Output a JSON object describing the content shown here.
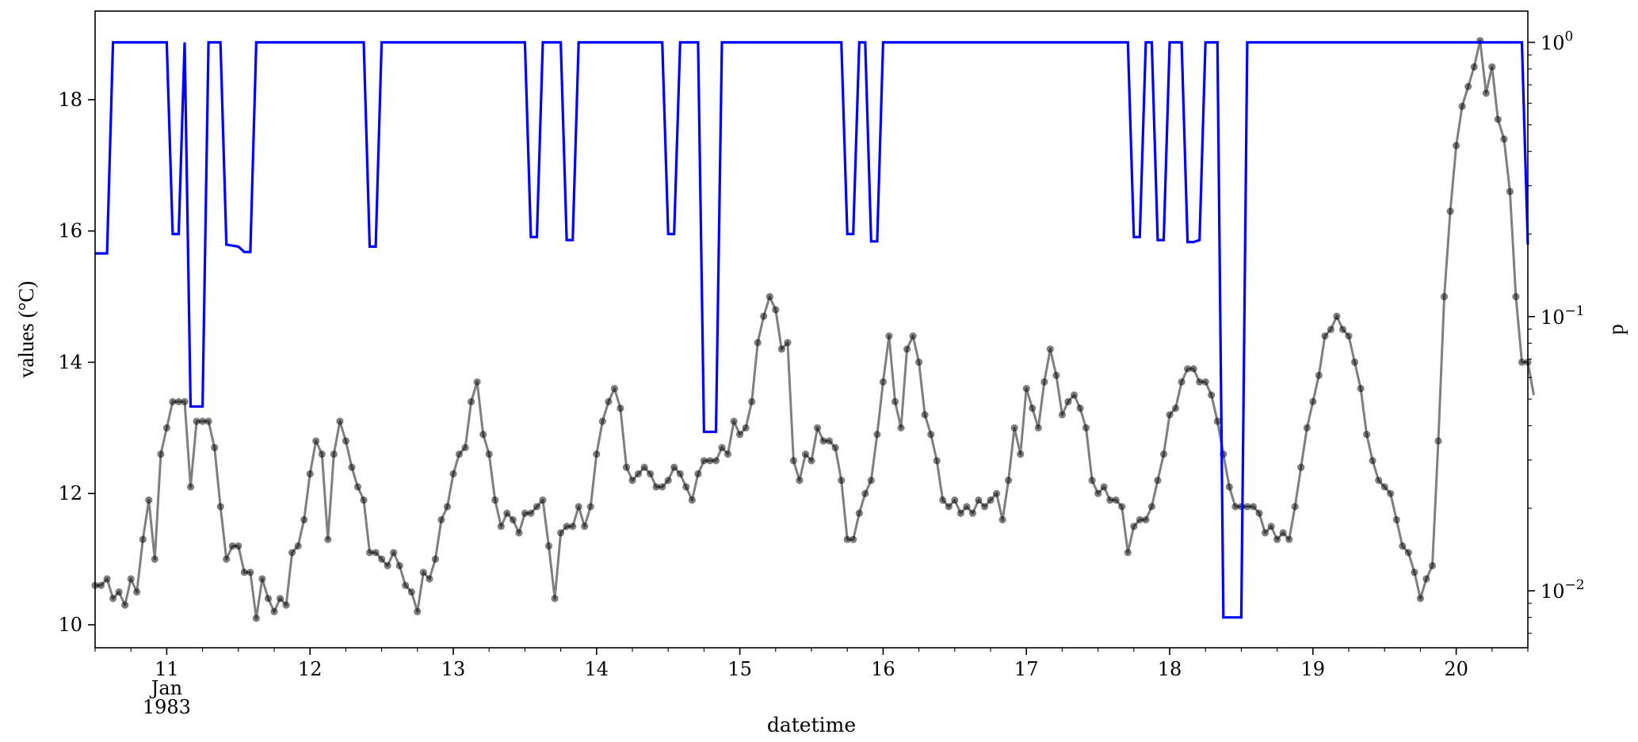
{
  "chart_data": {
    "type": "line",
    "xlabel": "datetime",
    "ylabel_left": "values (°C)",
    "ylabel_right": "p",
    "x_range": [
      "1983-01-10T12:00",
      "1983-01-20T12:00"
    ],
    "x_ticks": [
      {
        "x": "1983-01-11",
        "lines": [
          "11",
          "Jan",
          "1983"
        ]
      },
      {
        "x": "1983-01-12",
        "lines": [
          "12"
        ]
      },
      {
        "x": "1983-01-13",
        "lines": [
          "13"
        ]
      },
      {
        "x": "1983-01-14",
        "lines": [
          "14"
        ]
      },
      {
        "x": "1983-01-15",
        "lines": [
          "15"
        ]
      },
      {
        "x": "1983-01-16",
        "lines": [
          "16"
        ]
      },
      {
        "x": "1983-01-17",
        "lines": [
          "17"
        ]
      },
      {
        "x": "1983-01-18",
        "lines": [
          "18"
        ]
      },
      {
        "x": "1983-01-19",
        "lines": [
          "19"
        ]
      },
      {
        "x": "1983-01-20",
        "lines": [
          "20"
        ]
      }
    ],
    "ylim_left": [
      9.65,
      19.35
    ],
    "yticks_left": [
      "10",
      "12",
      "14",
      "16",
      "18"
    ],
    "ylim_right_log": [
      0.0062,
      1.3
    ],
    "yticks_right": [
      {
        "value": 1,
        "base": "10",
        "exp": "0"
      },
      {
        "value": 0.1,
        "base": "10",
        "exp": "−1"
      },
      {
        "value": 0.01,
        "base": "10",
        "exp": "−2"
      }
    ],
    "grid": false,
    "series": [
      {
        "color": "#000000",
        "opacity": 0.5,
        "marker": "circle",
        "start": "1983-01-10T12:00",
        "step_hours": 1,
        "values": [
          10.6,
          10.6,
          10.7,
          10.4,
          10.5,
          10.3,
          10.7,
          10.5,
          11.3,
          11.9,
          11.0,
          12.6,
          13.0,
          13.4,
          13.4,
          13.4,
          12.1,
          13.1,
          13.1,
          13.1,
          12.7,
          11.8,
          11.0,
          11.2,
          11.2,
          10.8,
          10.8,
          10.1,
          10.7,
          10.4,
          10.2,
          10.4,
          10.3,
          11.1,
          11.2,
          11.6,
          12.3,
          12.8,
          12.6,
          11.3,
          12.6,
          13.1,
          12.8,
          12.4,
          12.1,
          11.9,
          11.1,
          11.1,
          11.0,
          10.9,
          11.1,
          10.9,
          10.6,
          10.5,
          10.2,
          10.8,
          10.7,
          11.0,
          11.6,
          11.8,
          12.3,
          12.6,
          12.7,
          13.4,
          13.7,
          12.9,
          12.6,
          11.9,
          11.5,
          11.7,
          11.6,
          11.4,
          11.7,
          11.7,
          11.8,
          11.9,
          11.2,
          10.4,
          11.4,
          11.5,
          11.5,
          11.8,
          11.5,
          11.8,
          12.6,
          13.1,
          13.4,
          13.6,
          13.3,
          12.4,
          12.2,
          12.3,
          12.4,
          12.3,
          12.1,
          12.1,
          12.2,
          12.4,
          12.3,
          12.1,
          11.9,
          12.3,
          12.5,
          12.5,
          12.5,
          12.7,
          12.6,
          13.1,
          12.9,
          13.0,
          13.4,
          14.3,
          14.7,
          15.0,
          14.8,
          14.2,
          14.3,
          12.5,
          12.2,
          12.6,
          12.5,
          13.0,
          12.8,
          12.8,
          12.7,
          12.2,
          11.3,
          11.3,
          11.7,
          12.0,
          12.2,
          12.9,
          13.7,
          14.4,
          13.4,
          13.0,
          14.2,
          14.4,
          14.0,
          13.2,
          12.9,
          12.5,
          11.9,
          11.8,
          11.9,
          11.7,
          11.8,
          11.7,
          11.9,
          11.8,
          11.9,
          12.0,
          11.6,
          12.2,
          13.0,
          12.6,
          13.6,
          13.3,
          13.0,
          13.7,
          14.2,
          13.8,
          13.2,
          13.4,
          13.5,
          13.3,
          13.0,
          12.2,
          12.0,
          12.1,
          11.9,
          11.9,
          11.8,
          11.1,
          11.5,
          11.6,
          11.6,
          11.8,
          12.2,
          12.6,
          13.2,
          13.3,
          13.7,
          13.9,
          13.9,
          13.7,
          13.7,
          13.5,
          13.1,
          12.6,
          12.1,
          11.8,
          11.8,
          11.8,
          11.8,
          11.7,
          11.4,
          11.5,
          11.3,
          11.4,
          11.3,
          11.8,
          12.4,
          13.0,
          13.4,
          13.8,
          14.4,
          14.5,
          14.7,
          14.5,
          14.4,
          14.0,
          13.6,
          12.9,
          12.5,
          12.2,
          12.1,
          12.0,
          11.6,
          11.2,
          11.1,
          10.8,
          10.4,
          10.7,
          10.9,
          12.8,
          15.0,
          16.3,
          17.3,
          17.9,
          18.2,
          18.5,
          18.9,
          18.1,
          18.5,
          17.7,
          17.4,
          16.6,
          15.0,
          14.0,
          14.0,
          13.5
        ]
      },
      {
        "color": "#0000ff",
        "opacity": 1,
        "marker": "none",
        "axis": "right",
        "points": [
          [
            "1983-01-10T12:00",
            0.17
          ],
          [
            "1983-01-10T14:00",
            0.17
          ],
          [
            "1983-01-10T15:00",
            1
          ],
          [
            "1983-01-11T00:00",
            1
          ],
          [
            "1983-01-11T01:00",
            0.2
          ],
          [
            "1983-01-11T02:00",
            0.2
          ],
          [
            "1983-01-11T03:00",
            1
          ],
          [
            "1983-01-11T04:00",
            0.047
          ],
          [
            "1983-01-11T06:00",
            0.047
          ],
          [
            "1983-01-11T07:00",
            1
          ],
          [
            "1983-01-11T09:00",
            1
          ],
          [
            "1983-01-11T10:00",
            0.183
          ],
          [
            "1983-01-11T12:00",
            0.18
          ],
          [
            "1983-01-11T13:00",
            0.172
          ],
          [
            "1983-01-11T14:00",
            0.172
          ],
          [
            "1983-01-11T15:00",
            1
          ],
          [
            "1983-01-12T09:00",
            1
          ],
          [
            "1983-01-12T10:00",
            0.18
          ],
          [
            "1983-01-12T11:00",
            0.18
          ],
          [
            "1983-01-12T12:00",
            1
          ],
          [
            "1983-01-13T12:00",
            1
          ],
          [
            "1983-01-13T13:00",
            0.195
          ],
          [
            "1983-01-13T14:00",
            0.195
          ],
          [
            "1983-01-13T15:00",
            1
          ],
          [
            "1983-01-13T18:00",
            1
          ],
          [
            "1983-01-13T19:00",
            0.19
          ],
          [
            "1983-01-13T20:00",
            0.19
          ],
          [
            "1983-01-13T21:00",
            1
          ],
          [
            "1983-01-14T11:00",
            1
          ],
          [
            "1983-01-14T12:00",
            0.2
          ],
          [
            "1983-01-14T13:00",
            0.2
          ],
          [
            "1983-01-14T14:00",
            1
          ],
          [
            "1983-01-14T17:00",
            1
          ],
          [
            "1983-01-14T18:00",
            0.038
          ],
          [
            "1983-01-14T20:00",
            0.038
          ],
          [
            "1983-01-14T21:00",
            1
          ],
          [
            "1983-01-15T17:00",
            1
          ],
          [
            "1983-01-15T18:00",
            0.2
          ],
          [
            "1983-01-15T19:00",
            0.2
          ],
          [
            "1983-01-15T20:00",
            1
          ],
          [
            "1983-01-15T21:00",
            1
          ],
          [
            "1983-01-15T22:00",
            0.188
          ],
          [
            "1983-01-15T23:00",
            0.188
          ],
          [
            "1983-01-16T00:00",
            1
          ],
          [
            "1983-01-17T17:00",
            1
          ],
          [
            "1983-01-17T18:00",
            0.195
          ],
          [
            "1983-01-17T19:00",
            0.195
          ],
          [
            "1983-01-17T20:00",
            1
          ],
          [
            "1983-01-17T21:00",
            1
          ],
          [
            "1983-01-17T22:00",
            0.19
          ],
          [
            "1983-01-17T23:00",
            0.19
          ],
          [
            "1983-01-18T00:00",
            1
          ],
          [
            "1983-01-18T02:00",
            1
          ],
          [
            "1983-01-18T03:00",
            0.187
          ],
          [
            "1983-01-18T04:00",
            0.187
          ],
          [
            "1983-01-18T05:00",
            0.19
          ],
          [
            "1983-01-18T06:00",
            1
          ],
          [
            "1983-01-18T08:00",
            1
          ],
          [
            "1983-01-18T09:00",
            0.008
          ],
          [
            "1983-01-18T12:00",
            0.008
          ],
          [
            "1983-01-18T13:00",
            1
          ],
          [
            "1983-01-20T11:00",
            1
          ],
          [
            "1983-01-20T12:00",
            0.183
          ]
        ]
      }
    ]
  }
}
